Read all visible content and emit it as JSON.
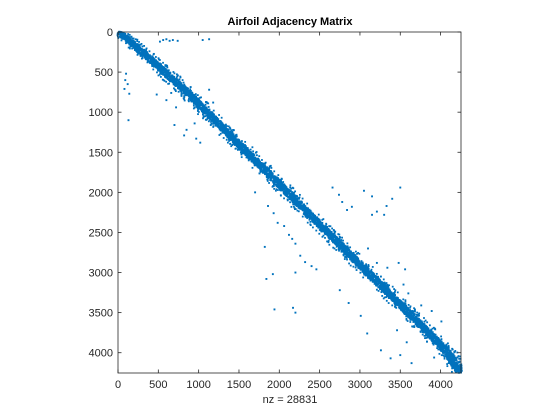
{
  "chart_data": {
    "type": "scatter",
    "title": "Airfoil Adjacency Matrix",
    "xlabel": "nz = 28831",
    "ylabel": "",
    "xlim": [
      0,
      4253
    ],
    "ylim": [
      0,
      4253
    ],
    "y_reversed": true,
    "grid": false,
    "legend": "none",
    "marker_color": "#0072BD",
    "x_ticks": [
      0,
      500,
      1000,
      1500,
      2000,
      2500,
      3000,
      3500,
      4000
    ],
    "y_ticks": [
      0,
      500,
      1000,
      1500,
      2000,
      2500,
      3000,
      3500,
      4000
    ],
    "x_tick_labels": [
      "0",
      "500",
      "1000",
      "1500",
      "2000",
      "2500",
      "3000",
      "3500",
      "4000"
    ],
    "y_tick_labels": [
      "0",
      "500",
      "1000",
      "1500",
      "2000",
      "2500",
      "3000",
      "3500",
      "4000"
    ],
    "nz": 28831,
    "band_points": [
      [
        0,
        0
      ],
      [
        60,
        40
      ],
      [
        120,
        90
      ],
      [
        200,
        160
      ],
      [
        300,
        250
      ],
      [
        420,
        360
      ],
      [
        500,
        430
      ],
      [
        600,
        520
      ],
      [
        700,
        610
      ],
      [
        800,
        700
      ],
      [
        900,
        790
      ],
      [
        1000,
        900
      ],
      [
        1100,
        1000
      ],
      [
        1200,
        1100
      ],
      [
        1300,
        1200
      ],
      [
        1400,
        1300
      ],
      [
        1500,
        1400
      ],
      [
        1600,
        1500
      ],
      [
        1700,
        1600
      ],
      [
        1800,
        1700
      ],
      [
        1900,
        1800
      ],
      [
        2000,
        1900
      ],
      [
        2100,
        2000
      ],
      [
        2200,
        2100
      ],
      [
        2300,
        2200
      ],
      [
        2400,
        2300
      ],
      [
        2500,
        2400
      ],
      [
        2600,
        2500
      ],
      [
        2700,
        2600
      ],
      [
        2800,
        2700
      ],
      [
        2900,
        2800
      ],
      [
        3000,
        2900
      ],
      [
        3100,
        3000
      ],
      [
        3200,
        3100
      ],
      [
        3300,
        3200
      ],
      [
        3400,
        3300
      ],
      [
        3500,
        3400
      ],
      [
        3600,
        3500
      ],
      [
        3700,
        3600
      ],
      [
        3800,
        3700
      ],
      [
        3900,
        3800
      ],
      [
        4000,
        3900
      ],
      [
        4100,
        4020
      ],
      [
        4253,
        4253
      ]
    ],
    "off_band_points": [
      [
        520,
        120
      ],
      [
        560,
        100
      ],
      [
        600,
        90
      ],
      [
        640,
        110
      ],
      [
        680,
        100
      ],
      [
        740,
        110
      ],
      [
        1050,
        100
      ],
      [
        1130,
        90
      ],
      [
        100,
        520
      ],
      [
        90,
        600
      ],
      [
        120,
        650
      ],
      [
        80,
        710
      ],
      [
        140,
        770
      ],
      [
        130,
        1100
      ],
      [
        480,
        780
      ],
      [
        600,
        850
      ],
      [
        660,
        760
      ],
      [
        720,
        940
      ],
      [
        1130,
        720
      ],
      [
        1180,
        880
      ],
      [
        1150,
        1160
      ],
      [
        950,
        1140
      ],
      [
        700,
        1160
      ],
      [
        850,
        1220
      ],
      [
        820,
        1290
      ],
      [
        970,
        1330
      ],
      [
        1020,
        1380
      ],
      [
        1700,
        2000
      ],
      [
        1860,
        2170
      ],
      [
        1930,
        2260
      ],
      [
        1980,
        2380
      ],
      [
        2060,
        2420
      ],
      [
        2120,
        2530
      ],
      [
        2160,
        2580
      ],
      [
        2200,
        2640
      ],
      [
        2260,
        2790
      ],
      [
        2320,
        2870
      ],
      [
        2400,
        2920
      ],
      [
        2460,
        2960
      ],
      [
        2200,
        3000
      ],
      [
        1920,
        3020
      ],
      [
        1840,
        3080
      ],
      [
        1940,
        3460
      ],
      [
        2170,
        3440
      ],
      [
        2200,
        3500
      ],
      [
        1820,
        2680
      ],
      [
        2660,
        1940
      ],
      [
        2740,
        2030
      ],
      [
        2780,
        2120
      ],
      [
        2840,
        2220
      ],
      [
        2900,
        2180
      ],
      [
        3050,
        1980
      ],
      [
        3150,
        2050
      ],
      [
        3210,
        2240
      ],
      [
        3330,
        2170
      ],
      [
        3400,
        2080
      ],
      [
        3500,
        1940
      ],
      [
        3300,
        2280
      ],
      [
        3150,
        2280
      ],
      [
        3100,
        2700
      ],
      [
        3210,
        2880
      ],
      [
        3260,
        3050
      ],
      [
        3340,
        2940
      ],
      [
        3480,
        2880
      ],
      [
        3560,
        2960
      ],
      [
        3540,
        3150
      ],
      [
        3600,
        3260
      ],
      [
        2750,
        3220
      ],
      [
        2860,
        3380
      ],
      [
        3010,
        3540
      ],
      [
        3090,
        3760
      ],
      [
        3260,
        3970
      ],
      [
        3380,
        4070
      ],
      [
        3460,
        3720
      ],
      [
        3680,
        3520
      ],
      [
        3760,
        3410
      ],
      [
        3890,
        3480
      ],
      [
        4010,
        3610
      ],
      [
        3930,
        3700
      ],
      [
        4150,
        3960
      ],
      [
        3920,
        4060
      ],
      [
        3640,
        4130
      ],
      [
        3500,
        4030
      ],
      [
        3580,
        3870
      ]
    ]
  }
}
